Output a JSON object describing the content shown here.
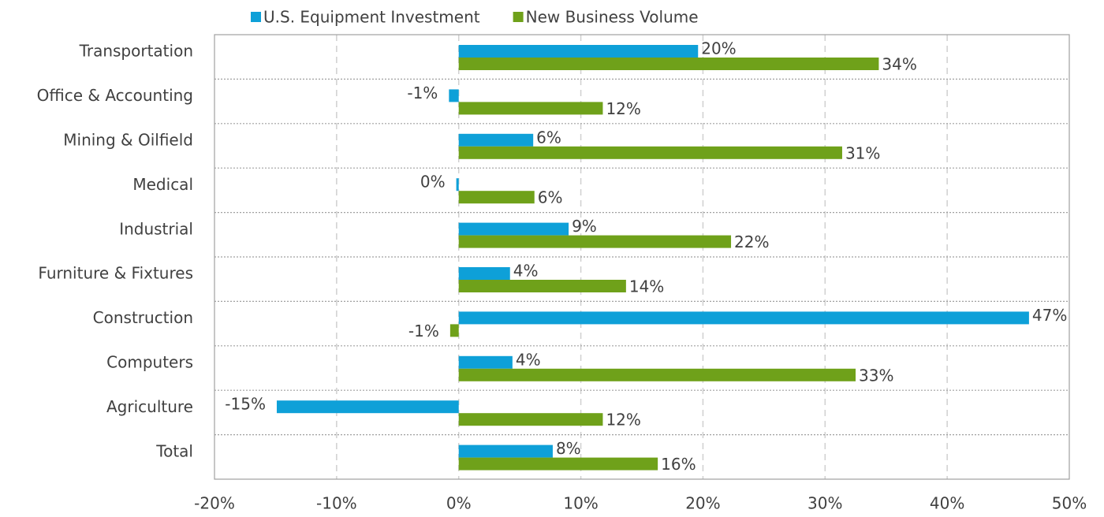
{
  "chart_data": {
    "type": "bar",
    "orientation": "horizontal",
    "categories": [
      "Transportation",
      "Office & Accounting",
      "Mining & Oilfield",
      "Medical",
      "Industrial",
      "Furniture & Fixtures",
      "Construction",
      "Computers",
      "Agriculture",
      "Total"
    ],
    "series": [
      {
        "name": "U.S. Equipment Investment",
        "color": "#0ea0d8",
        "values": [
          19.6,
          -0.8,
          6.1,
          -0.2,
          9.0,
          4.2,
          46.7,
          4.4,
          -14.9,
          7.7
        ],
        "value_labels": [
          "20%",
          "-1%",
          "6%",
          "0%",
          "9%",
          "4%",
          "47%",
          "4%",
          "-15%",
          "8%"
        ]
      },
      {
        "name": "New Business Volume",
        "color": "#6fa11a",
        "values": [
          34.4,
          11.8,
          31.4,
          6.2,
          22.3,
          13.7,
          -0.7,
          32.5,
          11.8,
          16.3
        ],
        "value_labels": [
          "34%",
          "12%",
          "31%",
          "6%",
          "22%",
          "14%",
          "-1%",
          "33%",
          "12%",
          "16%"
        ]
      }
    ],
    "xlim": [
      -20,
      50
    ],
    "xticks": [
      {
        "value": -20,
        "label": "-20%"
      },
      {
        "value": -10,
        "label": "-10%"
      },
      {
        "value": 0,
        "label": "0%"
      },
      {
        "value": 10,
        "label": "10%"
      },
      {
        "value": 20,
        "label": "20%"
      },
      {
        "value": 30,
        "label": "30%"
      },
      {
        "value": 40,
        "label": "40%"
      },
      {
        "value": 50,
        "label": "50%"
      }
    ],
    "grid": true,
    "legend": "top"
  }
}
